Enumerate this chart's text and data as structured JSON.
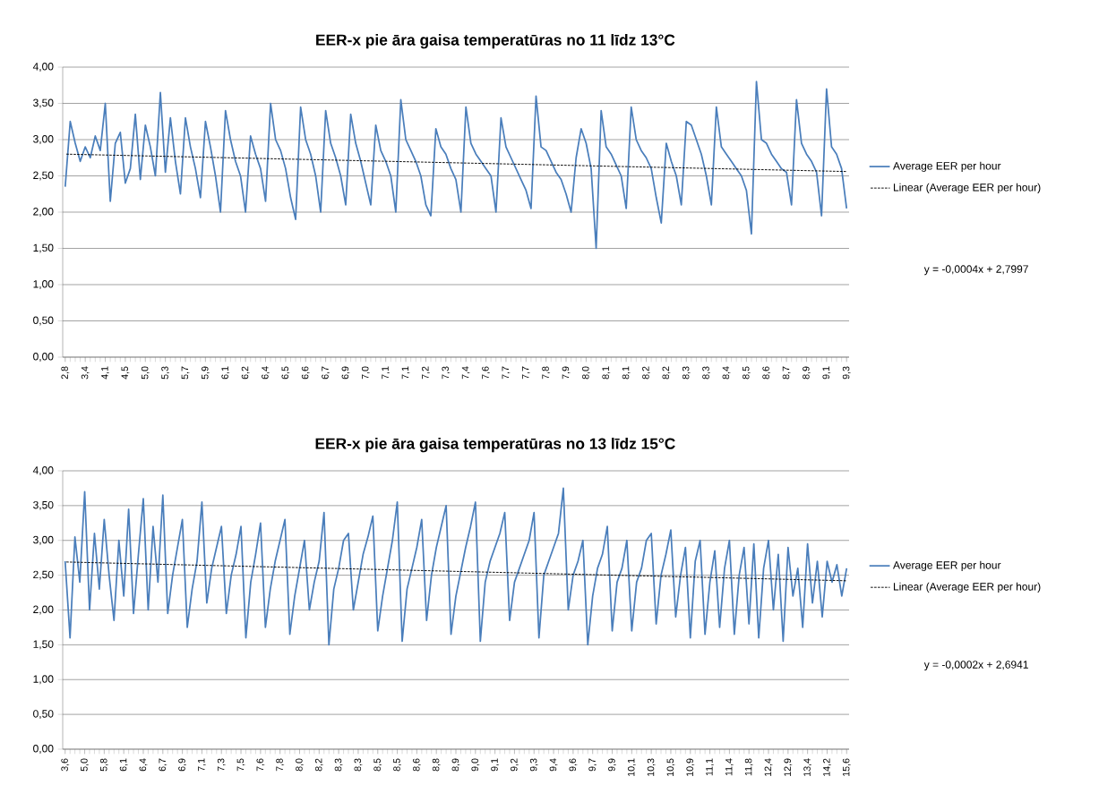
{
  "chart_data": [
    {
      "type": "line",
      "title": "EER-x pie āra gaisa temperatūras no 11 līdz 13°C",
      "categories": [
        "2,8",
        null,
        null,
        null,
        "3,4",
        null,
        null,
        null,
        "4,1",
        null,
        null,
        null,
        "4,5",
        null,
        null,
        null,
        "5,0",
        null,
        null,
        null,
        "5,3",
        null,
        null,
        null,
        "5,7",
        null,
        null,
        null,
        "5,9",
        null,
        null,
        null,
        "6,1",
        null,
        null,
        null,
        "6,2",
        null,
        null,
        null,
        "6,4",
        null,
        null,
        null,
        "6,5",
        null,
        null,
        null,
        "6,6",
        null,
        null,
        null,
        "6,7",
        null,
        null,
        null,
        "6,9",
        null,
        null,
        null,
        "7,0",
        null,
        null,
        null,
        "7,1",
        null,
        null,
        null,
        "7,1",
        null,
        null,
        null,
        "7,2",
        null,
        null,
        null,
        "7,3",
        null,
        null,
        null,
        "7,4",
        null,
        null,
        null,
        "7,6",
        null,
        null,
        null,
        "7,7",
        null,
        null,
        null,
        "7,7",
        null,
        null,
        null,
        "7,8",
        null,
        null,
        null,
        "7,9",
        null,
        null,
        null,
        "8,0",
        null,
        null,
        null,
        "8,1",
        null,
        null,
        null,
        "8,1",
        null,
        null,
        null,
        "8,2",
        null,
        null,
        null,
        "8,2",
        null,
        null,
        null,
        "8,3",
        null,
        null,
        null,
        "8,3",
        null,
        null,
        null,
        "8,4",
        null,
        null,
        null,
        "8,5",
        null,
        null,
        null,
        "8,6",
        null,
        null,
        null,
        "8,7",
        null,
        null,
        null,
        "8,9",
        null,
        null,
        null,
        "9,1",
        null,
        null,
        null,
        "9,3"
      ],
      "series": [
        {
          "name": "Average EER per hour",
          "color": "#4a7ebb",
          "line_style": "solid",
          "values": [
            2.35,
            3.25,
            2.95,
            2.7,
            2.9,
            2.75,
            3.05,
            2.85,
            3.5,
            2.15,
            2.95,
            3.1,
            2.4,
            2.6,
            3.35,
            2.45,
            3.2,
            2.9,
            2.5,
            3.65,
            2.55,
            3.3,
            2.7,
            2.25,
            3.3,
            2.9,
            2.6,
            2.2,
            3.25,
            2.9,
            2.5,
            2.0,
            3.4,
            3.0,
            2.7,
            2.5,
            2.0,
            3.05,
            2.8,
            2.6,
            2.15,
            3.5,
            3.0,
            2.85,
            2.6,
            2.2,
            1.9,
            3.45,
            3.0,
            2.8,
            2.5,
            2.0,
            3.4,
            2.95,
            2.75,
            2.5,
            2.1,
            3.35,
            2.95,
            2.7,
            2.4,
            2.1,
            3.2,
            2.85,
            2.7,
            2.5,
            2.0,
            3.55,
            3.0,
            2.85,
            2.7,
            2.5,
            2.1,
            1.95,
            3.15,
            2.9,
            2.8,
            2.6,
            2.45,
            2.0,
            3.45,
            2.95,
            2.8,
            2.7,
            2.6,
            2.5,
            2.0,
            3.3,
            2.9,
            2.75,
            2.6,
            2.45,
            2.3,
            2.05,
            3.6,
            2.9,
            2.85,
            2.7,
            2.55,
            2.45,
            2.25,
            2.0,
            2.75,
            3.15,
            2.95,
            2.6,
            1.5,
            3.4,
            2.9,
            2.8,
            2.65,
            2.5,
            2.05,
            3.45,
            3.0,
            2.85,
            2.75,
            2.6,
            2.2,
            1.85,
            2.95,
            2.7,
            2.5,
            2.1,
            3.25,
            3.2,
            3.0,
            2.8,
            2.5,
            2.1,
            3.45,
            2.9,
            2.8,
            2.7,
            2.6,
            2.5,
            2.3,
            1.7,
            3.8,
            3.0,
            2.95,
            2.8,
            2.7,
            2.6,
            2.55,
            2.1,
            3.55,
            2.95,
            2.8,
            2.7,
            2.55,
            1.95,
            3.7,
            2.9,
            2.8,
            2.6,
            2.05
          ]
        },
        {
          "name": "Linear (Average EER per hour)",
          "color": "#000000",
          "line_style": "dashed",
          "values": [
            2.8,
            null,
            null,
            null,
            null,
            null,
            null,
            null,
            null,
            null,
            null,
            null,
            null,
            null,
            null,
            null,
            null,
            null,
            null,
            null,
            null,
            null,
            null,
            null,
            null,
            null,
            null,
            null,
            null,
            null,
            null,
            null,
            null,
            null,
            null,
            null,
            null,
            null,
            null,
            null,
            null,
            null,
            null,
            null,
            null,
            null,
            null,
            null,
            null,
            null,
            null,
            null,
            null,
            null,
            null,
            null,
            null,
            null,
            null,
            null,
            null,
            null,
            null,
            null,
            null,
            null,
            null,
            null,
            null,
            null,
            null,
            null,
            null,
            null,
            null,
            null,
            null,
            null,
            null,
            null,
            null,
            null,
            null,
            null,
            null,
            null,
            null,
            null,
            null,
            null,
            null,
            null,
            null,
            null,
            null,
            null,
            null,
            null,
            null,
            null,
            null,
            null,
            null,
            null,
            null,
            null,
            null,
            null,
            null,
            null,
            null,
            null,
            null,
            null,
            null,
            null,
            null,
            null,
            null,
            null,
            null,
            null,
            null,
            null,
            null,
            null,
            null,
            null,
            null,
            null,
            null,
            null,
            null,
            null,
            null,
            null,
            null,
            null,
            null,
            null,
            null,
            null,
            null,
            null,
            null,
            null,
            null,
            null,
            null,
            null,
            null,
            null,
            null,
            null,
            null,
            null,
            2.56
          ]
        }
      ],
      "ylim": [
        0,
        4
      ],
      "yticks": [
        {
          "value": 0,
          "label": "0,00"
        },
        {
          "value": 0.5,
          "label": "0,50"
        },
        {
          "value": 1,
          "label": "1,00"
        },
        {
          "value": 1.5,
          "label": "1,50"
        },
        {
          "value": 2,
          "label": "2,00"
        },
        {
          "value": 2.5,
          "label": "2,50"
        },
        {
          "value": 3,
          "label": "3,00"
        },
        {
          "value": 3.5,
          "label": "3,50"
        },
        {
          "value": 4,
          "label": "4,00"
        }
      ],
      "grid": "y",
      "legend": "right",
      "annotations": [
        "y = -0,0004x + 2,7997"
      ]
    },
    {
      "type": "line",
      "title": "EER-x pie āra gaisa temperatūras no 13 līdz 15°C",
      "categories": [
        "3,6",
        null,
        null,
        null,
        "5,0",
        null,
        null,
        null,
        "5,8",
        null,
        null,
        null,
        "6,1",
        null,
        null,
        null,
        "6,4",
        null,
        null,
        null,
        "6,7",
        null,
        null,
        null,
        "6,9",
        null,
        null,
        null,
        "7,1",
        null,
        null,
        null,
        "7,3",
        null,
        null,
        null,
        "7,5",
        null,
        null,
        null,
        "7,6",
        null,
        null,
        null,
        "7,8",
        null,
        null,
        null,
        "8,0",
        null,
        null,
        null,
        "8,2",
        null,
        null,
        null,
        "8,3",
        null,
        null,
        null,
        "8,3",
        null,
        null,
        null,
        "8,5",
        null,
        null,
        null,
        "8,5",
        null,
        null,
        null,
        "8,6",
        null,
        null,
        null,
        "8,8",
        null,
        null,
        null,
        "8,9",
        null,
        null,
        null,
        "9,0",
        null,
        null,
        null,
        "9,1",
        null,
        null,
        null,
        "9,2",
        null,
        null,
        null,
        "9,3",
        null,
        null,
        null,
        "9,4",
        null,
        null,
        null,
        "9,6",
        null,
        null,
        null,
        "9,7",
        null,
        null,
        null,
        "9,9",
        null,
        null,
        null,
        "10,1",
        null,
        null,
        null,
        "10,3",
        null,
        null,
        null,
        "10,5",
        null,
        null,
        null,
        "10,9",
        null,
        null,
        null,
        "11,1",
        null,
        null,
        null,
        "11,4",
        null,
        null,
        null,
        "11,8",
        null,
        null,
        null,
        "12,4",
        null,
        null,
        null,
        "12,9",
        null,
        null,
        null,
        "13,4",
        null,
        null,
        null,
        "14,2",
        null,
        null,
        null,
        "15,6"
      ],
      "series": [
        {
          "name": "Average EER per hour",
          "color": "#4a7ebb",
          "line_style": "solid",
          "values": [
            2.7,
            1.6,
            3.05,
            2.4,
            3.7,
            2.0,
            3.1,
            2.3,
            3.3,
            2.5,
            1.85,
            3.0,
            2.2,
            3.45,
            1.95,
            2.8,
            3.6,
            2.0,
            3.2,
            2.4,
            3.65,
            1.95,
            2.5,
            2.9,
            3.3,
            1.75,
            2.3,
            2.7,
            3.55,
            2.1,
            2.6,
            2.9,
            3.2,
            1.95,
            2.5,
            2.8,
            3.2,
            1.6,
            2.4,
            2.8,
            3.25,
            1.75,
            2.3,
            2.7,
            3.0,
            3.3,
            1.65,
            2.2,
            2.6,
            3.0,
            2.0,
            2.4,
            2.7,
            3.4,
            1.5,
            2.3,
            2.6,
            3.0,
            3.1,
            2.0,
            2.4,
            2.8,
            3.05,
            3.35,
            1.7,
            2.2,
            2.6,
            3.0,
            3.55,
            1.55,
            2.3,
            2.6,
            2.9,
            3.3,
            1.85,
            2.5,
            2.9,
            3.2,
            3.5,
            1.65,
            2.2,
            2.55,
            2.9,
            3.2,
            3.55,
            1.55,
            2.4,
            2.7,
            2.9,
            3.1,
            3.4,
            1.85,
            2.4,
            2.6,
            2.8,
            3.0,
            3.4,
            1.6,
            2.5,
            2.7,
            2.9,
            3.1,
            3.75,
            2.0,
            2.5,
            2.7,
            3.0,
            1.5,
            2.2,
            2.6,
            2.8,
            3.2,
            1.7,
            2.4,
            2.6,
            3.0,
            1.7,
            2.4,
            2.6,
            3.0,
            3.1,
            1.8,
            2.5,
            2.8,
            3.15,
            1.9,
            2.5,
            2.9,
            1.6,
            2.7,
            3.0,
            1.65,
            2.4,
            2.85,
            1.75,
            2.6,
            3.0,
            1.65,
            2.5,
            2.9,
            1.8,
            2.95,
            1.6,
            2.6,
            3.0,
            2.0,
            2.8,
            1.55,
            2.9,
            2.2,
            2.6,
            1.75,
            2.95,
            2.1,
            2.7,
            1.9,
            2.7,
            2.4,
            2.65,
            2.2,
            2.6
          ]
        },
        {
          "name": "Linear (Average EER per hour)",
          "color": "#000000",
          "line_style": "dashed",
          "values": [
            2.69,
            null,
            null,
            null,
            null,
            null,
            null,
            null,
            null,
            null,
            null,
            null,
            null,
            null,
            null,
            null,
            null,
            null,
            null,
            null,
            null,
            null,
            null,
            null,
            null,
            null,
            null,
            null,
            null,
            null,
            null,
            null,
            null,
            null,
            null,
            null,
            null,
            null,
            null,
            null,
            null,
            null,
            null,
            null,
            null,
            null,
            null,
            null,
            null,
            null,
            null,
            null,
            null,
            null,
            null,
            null,
            null,
            null,
            null,
            null,
            null,
            null,
            null,
            null,
            null,
            null,
            null,
            null,
            null,
            null,
            null,
            null,
            null,
            null,
            null,
            null,
            null,
            null,
            null,
            null,
            null,
            null,
            null,
            null,
            null,
            null,
            null,
            null,
            null,
            null,
            null,
            null,
            null,
            null,
            null,
            null,
            null,
            null,
            null,
            null,
            null,
            null,
            null,
            null,
            null,
            null,
            null,
            null,
            null,
            null,
            null,
            null,
            null,
            null,
            null,
            null,
            null,
            null,
            null,
            null,
            null,
            null,
            null,
            null,
            null,
            null,
            null,
            null,
            null,
            null,
            null,
            null,
            null,
            null,
            null,
            null,
            null,
            null,
            null,
            null,
            null,
            null,
            null,
            null,
            null,
            null,
            null,
            null,
            null,
            null,
            null,
            null,
            null,
            null,
            null,
            null,
            null,
            null,
            null,
            null,
            2.42
          ]
        }
      ],
      "ylim": [
        0,
        4
      ],
      "yticks": [
        {
          "value": 0,
          "label": "0,00"
        },
        {
          "value": 0.5,
          "label": "0,50"
        },
        {
          "value": 1,
          "label": "1,00"
        },
        {
          "value": 1.5,
          "label": "1,50"
        },
        {
          "value": 2,
          "label": "2,00"
        },
        {
          "value": 2.5,
          "label": "2,50"
        },
        {
          "value": 3,
          "label": "3,00"
        },
        {
          "value": 3.5,
          "label": "3,50"
        },
        {
          "value": 4,
          "label": "4,00"
        }
      ],
      "grid": "y",
      "legend": "right",
      "annotations": [
        "y = -0,0002x + 2,6941"
      ]
    }
  ]
}
